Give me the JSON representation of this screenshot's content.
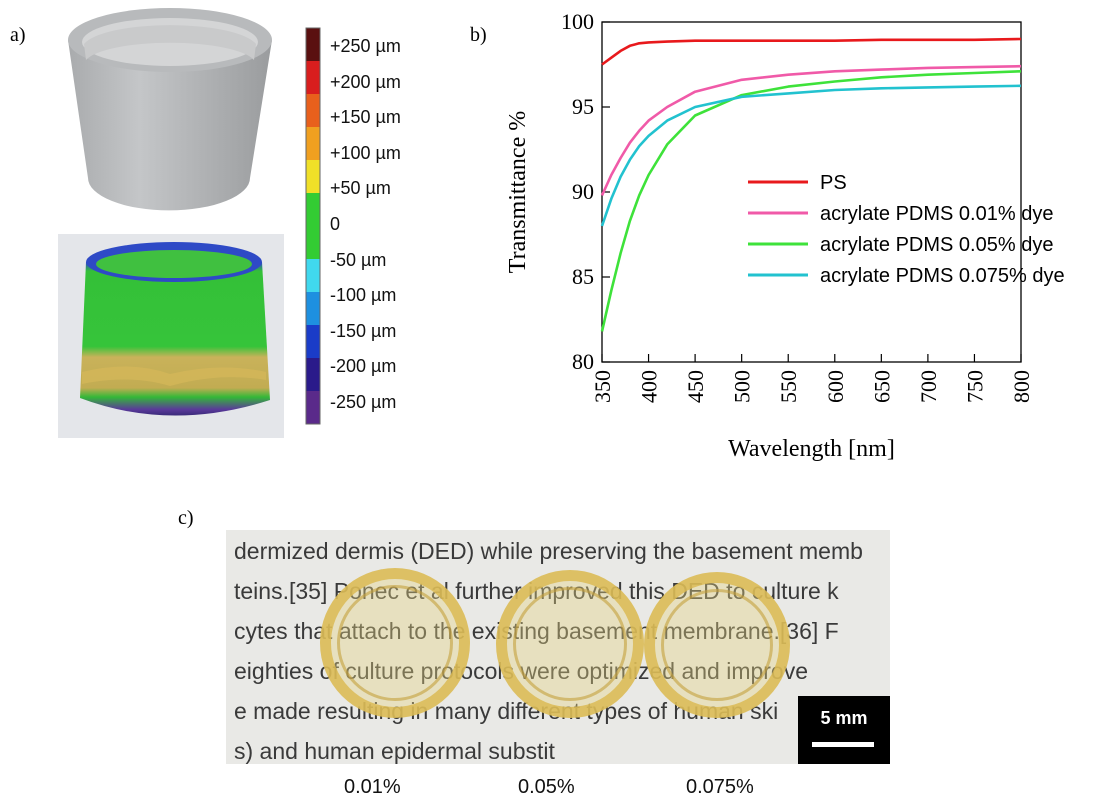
{
  "panels": {
    "a": "a)",
    "b": "b)",
    "c": "c)"
  },
  "deviation_scale": {
    "labels": [
      "+250 µm",
      "+200 µm",
      "+150 µm",
      "+100 µm",
      "+50 µm",
      "0",
      "-50 µm",
      "-100 µm",
      "-150 µm",
      "-200 µm",
      "-250 µm"
    ],
    "colors": [
      "#5a1010",
      "#d81e1e",
      "#e8601c",
      "#f0a020",
      "#f0e028",
      "#33cc33",
      "#33cc33",
      "#40d8ee",
      "#1e90e0",
      "#1a3cc8",
      "#2a1a8a",
      "#5a2a8a"
    ]
  },
  "photo": {
    "sample_labels": [
      "0.01%",
      "0.05%",
      "0.075%"
    ],
    "scale_bar": "5 mm",
    "background_lines": [
      "dermized dermis (DED) while preserving the basement memb",
      "teins.[35] Ponec et al further improved this DED to culture k",
      "cytes that attach to the existing basement membrane.[36] F",
      "eighties of culture protocols were optimized and improve",
      "e made resulting in many different types of human ski",
      "s) and human epidermal substit"
    ]
  },
  "chart_data": {
    "type": "line",
    "xlabel": "Wavelength [nm]",
    "ylabel": "Transmittance %",
    "xlim": [
      350,
      800
    ],
    "ylim": [
      80,
      100
    ],
    "xticks": [
      350,
      400,
      450,
      500,
      550,
      600,
      650,
      700,
      750,
      800
    ],
    "yticks": [
      80,
      85,
      90,
      95,
      100
    ],
    "legend_position": "center-right",
    "x": [
      350,
      360,
      370,
      380,
      390,
      400,
      420,
      450,
      500,
      550,
      600,
      650,
      700,
      750,
      800
    ],
    "series": [
      {
        "name": "PS",
        "color": "#e8191c",
        "values": [
          97.5,
          97.9,
          98.3,
          98.6,
          98.75,
          98.8,
          98.85,
          98.9,
          98.9,
          98.9,
          98.9,
          98.95,
          98.95,
          98.95,
          99.0
        ]
      },
      {
        "name": "acrylate PDMS 0.01% dye",
        "color": "#f05aa8",
        "values": [
          89.8,
          91.0,
          92.0,
          92.9,
          93.6,
          94.2,
          95.0,
          95.9,
          96.6,
          96.9,
          97.1,
          97.2,
          97.3,
          97.35,
          97.4
        ]
      },
      {
        "name": "acrylate PDMS 0.05% dye",
        "color": "#3ee23a",
        "values": [
          81.8,
          84.2,
          86.4,
          88.3,
          89.8,
          91.0,
          92.8,
          94.5,
          95.7,
          96.2,
          96.5,
          96.75,
          96.9,
          97.0,
          97.1
        ]
      },
      {
        "name": "acrylate PDMS 0.075% dye",
        "color": "#22c2cf",
        "values": [
          88.0,
          89.6,
          90.9,
          91.9,
          92.7,
          93.3,
          94.2,
          95.0,
          95.6,
          95.8,
          96.0,
          96.1,
          96.15,
          96.2,
          96.25
        ]
      }
    ]
  }
}
